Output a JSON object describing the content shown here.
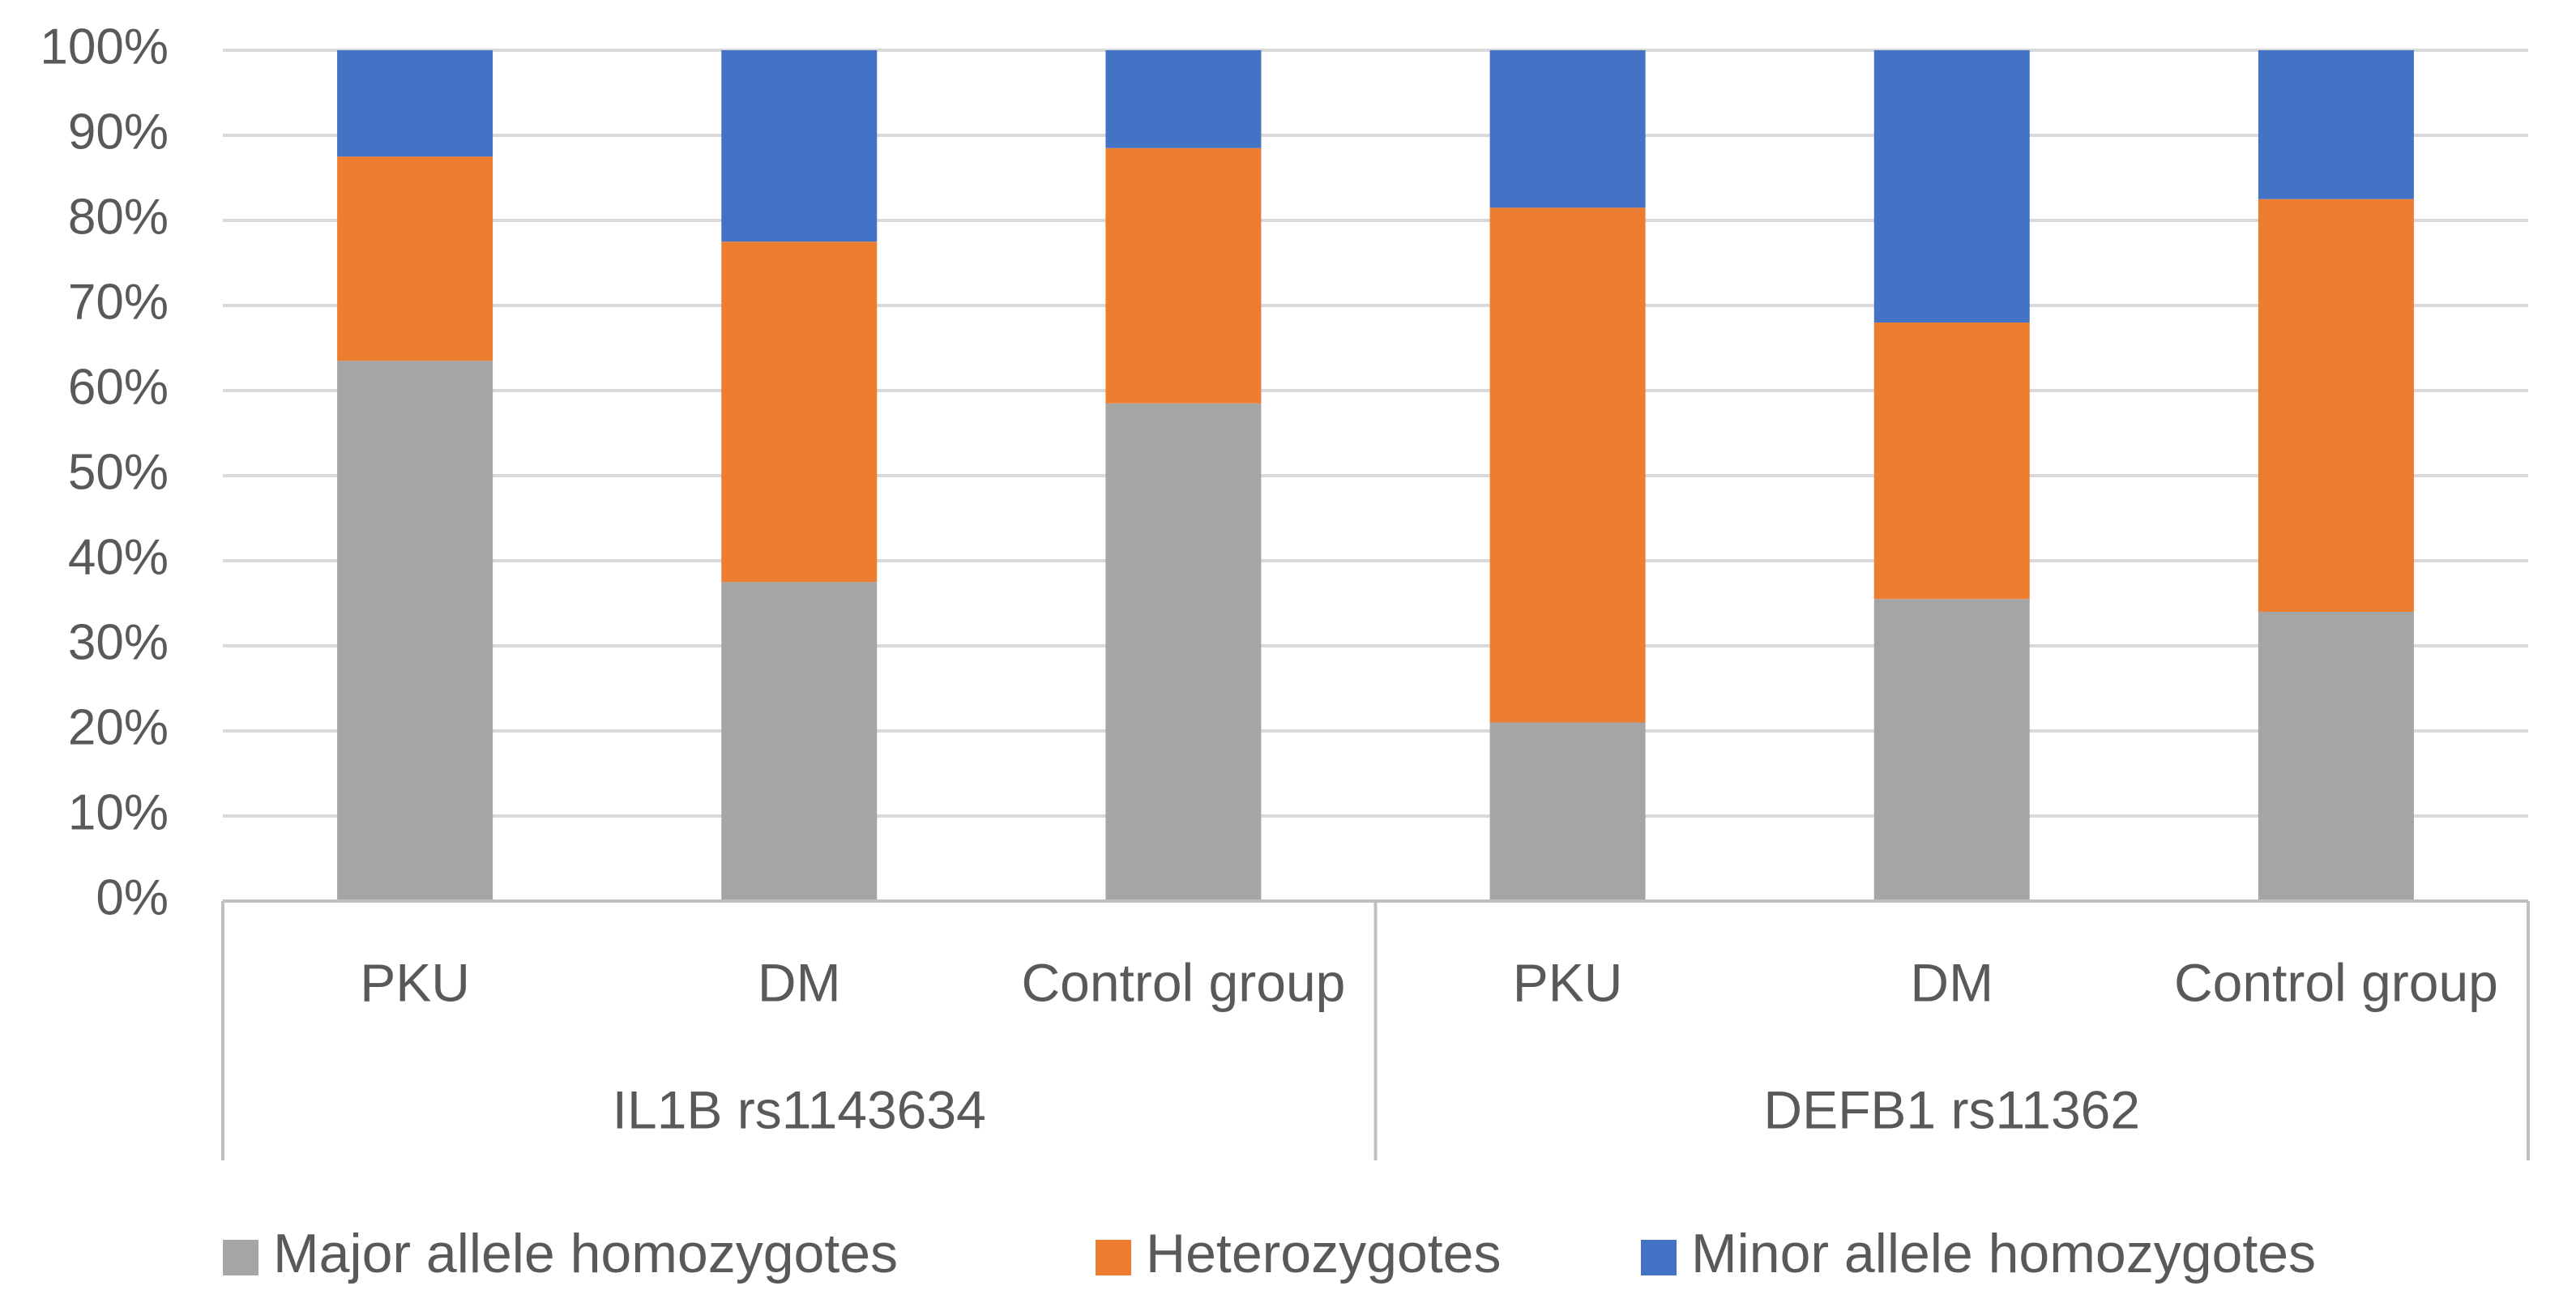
{
  "chart_data": {
    "type": "bar",
    "stacked": true,
    "percent": true,
    "groups": [
      {
        "label": "IL1B rs1143634",
        "categories": [
          "PKU",
          "DM",
          "Control group"
        ]
      },
      {
        "label": "DEFB1 rs11362",
        "categories": [
          "PKU",
          "DM",
          "Control group"
        ]
      }
    ],
    "categories": [
      "PKU",
      "DM",
      "Control group",
      "PKU",
      "DM",
      "Control group"
    ],
    "series": [
      {
        "name": "Major allele homozygotes",
        "color": "#A5A5A5",
        "values": [
          63.5,
          37.5,
          58.5,
          21.0,
          35.5,
          34.0
        ]
      },
      {
        "name": "Heterozygotes",
        "color": "#ED7D31",
        "values": [
          24.0,
          40.0,
          30.0,
          60.5,
          32.5,
          48.5
        ]
      },
      {
        "name": "Minor allele homozygotes",
        "color": "#4472C4",
        "values": [
          12.5,
          22.5,
          11.5,
          18.5,
          32.0,
          17.5
        ]
      }
    ],
    "yticks": [
      "0%",
      "10%",
      "20%",
      "30%",
      "40%",
      "50%",
      "60%",
      "70%",
      "80%",
      "90%",
      "100%"
    ],
    "ylim": [
      0,
      100
    ],
    "grid": true,
    "legend": "bottom",
    "title": "",
    "xlabel": "",
    "ylabel": ""
  }
}
